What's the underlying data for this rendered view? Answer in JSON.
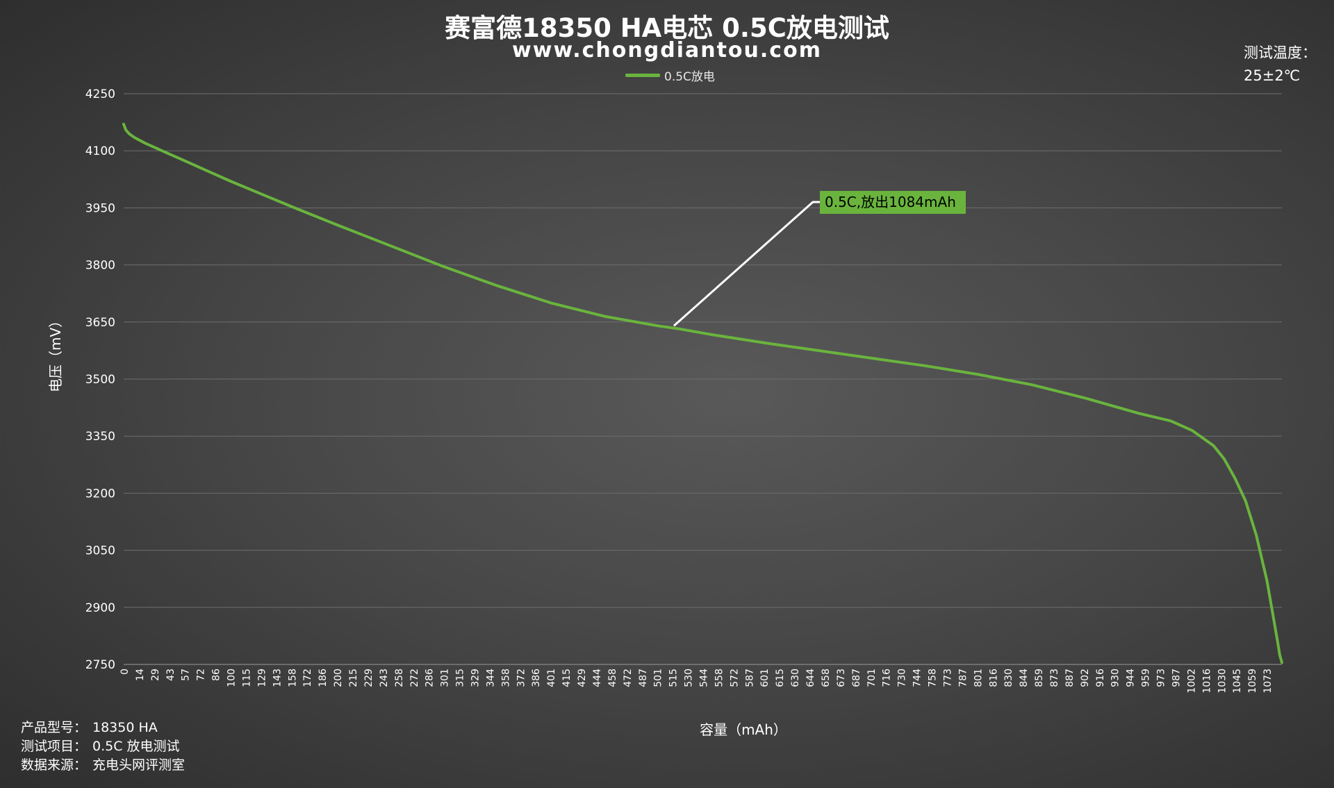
{
  "title": "赛富德18350 HA电芯  0.5C放电测试",
  "subtitle": "www.chongdiantou.com",
  "legend": {
    "label": "0.5C放电",
    "color": "#6ab43e"
  },
  "temperature": {
    "label": "测试温度：",
    "value": "25±2℃"
  },
  "meta": [
    {
      "key": "产品型号：",
      "value": "18350 HA"
    },
    {
      "key": "测试项目：",
      "value": "0.5C 放电测试"
    },
    {
      "key": "数据来源：",
      "value": "充电头网评测室"
    }
  ],
  "chart_data": {
    "type": "line",
    "title": "赛富德18350 HA电芯  0.5C放电测试",
    "xlabel": "容量（mAh）",
    "ylabel": "电压（mV）",
    "ylim": [
      2750,
      4250
    ],
    "xlim": [
      0,
      1084
    ],
    "yticks": [
      2750,
      2900,
      3050,
      3200,
      3350,
      3500,
      3650,
      3800,
      3950,
      4100,
      4250
    ],
    "xticks": [
      "0",
      "14",
      "29",
      "43",
      "57",
      "72",
      "86",
      "100",
      "115",
      "129",
      "143",
      "158",
      "172",
      "186",
      "200",
      "215",
      "229",
      "243",
      "258",
      "272",
      "286",
      "301",
      "315",
      "329",
      "344",
      "358",
      "372",
      "386",
      "401",
      "415",
      "429",
      "444",
      "458",
      "472",
      "487",
      "501",
      "515",
      "530",
      "544",
      "558",
      "572",
      "587",
      "601",
      "615",
      "630",
      "644",
      "658",
      "673",
      "687",
      "701",
      "716",
      "730",
      "744",
      "758",
      "773",
      "787",
      "801",
      "816",
      "830",
      "844",
      "859",
      "873",
      "887",
      "902",
      "916",
      "930",
      "944",
      "959",
      "973",
      "987",
      "1002",
      "1016",
      "1030",
      "1045",
      "1059",
      "1073"
    ],
    "grid": true,
    "legend_position": "top-center",
    "series": [
      {
        "name": "0.5C放电",
        "color": "#6ab43e",
        "x": [
          0,
          2,
          5,
          10,
          20,
          40,
          60,
          80,
          100,
          130,
          160,
          200,
          250,
          300,
          350,
          400,
          450,
          500,
          520,
          550,
          600,
          650,
          700,
          750,
          800,
          850,
          900,
          950,
          980,
          1000,
          1020,
          1030,
          1040,
          1050,
          1060,
          1070,
          1075,
          1080,
          1082,
          1084
        ],
        "y": [
          4170,
          4155,
          4145,
          4135,
          4120,
          4095,
          4070,
          4045,
          4020,
          3985,
          3950,
          3905,
          3850,
          3795,
          3745,
          3700,
          3665,
          3640,
          3632,
          3617,
          3595,
          3575,
          3555,
          3535,
          3512,
          3485,
          3450,
          3410,
          3390,
          3365,
          3325,
          3290,
          3240,
          3180,
          3090,
          2970,
          2890,
          2810,
          2775,
          2755
        ]
      }
    ],
    "annotation": {
      "text": "0.5C,放出1084mAh",
      "x": 515,
      "y": 3640
    }
  }
}
